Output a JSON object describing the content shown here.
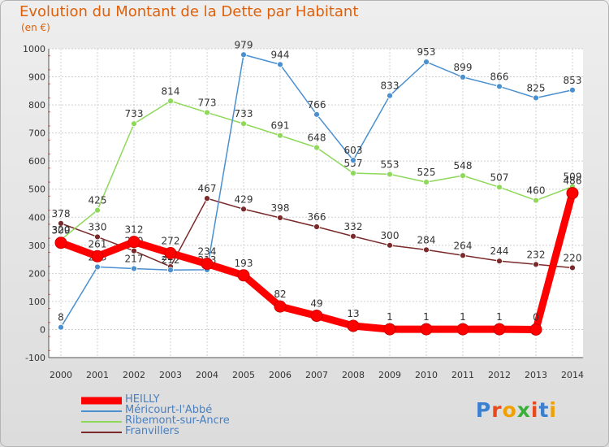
{
  "header": {
    "title": "Evolution du Montant de la Dette par Habitant",
    "unit": "(en €)"
  },
  "logo": {
    "text": "Proxiti",
    "colors": [
      "#3a7fd0",
      "#e84a1e",
      "#f0a000",
      "#3ab03a",
      "#e84a1e",
      "#3a7fd0",
      "#f0a000"
    ]
  },
  "chart_data": {
    "type": "line",
    "title": "Evolution du Montant de la Dette par Habitant",
    "ylabel": "(en €)",
    "xlabel": "",
    "x": [
      "2000",
      "2001",
      "2002",
      "2003",
      "2004",
      "2005",
      "2006",
      "2007",
      "2008",
      "2009",
      "2010",
      "2011",
      "2012",
      "2013",
      "2014"
    ],
    "ylim": [
      -100,
      1000
    ],
    "yticks": [
      -100,
      0,
      100,
      200,
      300,
      400,
      500,
      600,
      700,
      800,
      900,
      1000
    ],
    "grid": true,
    "legend_position": "bottom-left",
    "series": [
      {
        "name": "Franvillers",
        "color": "#7a2a2a",
        "values": [
          378,
          330,
          280,
          224,
          467,
          429,
          398,
          366,
          332,
          300,
          284,
          264,
          244,
          232,
          220
        ]
      },
      {
        "name": "Ribemont-sur-Ancre",
        "color": "#8ed85a",
        "values": [
          320,
          425,
          733,
          814,
          773,
          733,
          691,
          648,
          557,
          553,
          525,
          548,
          507,
          460,
          509
        ]
      },
      {
        "name": "Méricourt-l'Abbé",
        "color": "#4a8fcf",
        "values": [
          8,
          223,
          217,
          212,
          213,
          979,
          944,
          766,
          603,
          833,
          953,
          899,
          866,
          825,
          853
        ]
      },
      {
        "name": "HEILLY",
        "color": "#ff0000",
        "values": [
          309,
          261,
          312,
          272,
          234,
          193,
          82,
          49,
          13,
          1,
          1,
          1,
          1,
          0,
          486
        ]
      }
    ]
  }
}
